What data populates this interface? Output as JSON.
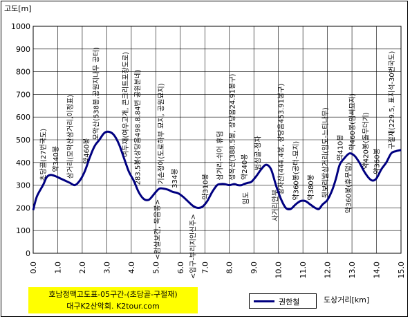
{
  "chart_data": {
    "type": "line",
    "ylabel": "고도[m]",
    "xlabel": "도상거리[km]",
    "ylim": [
      0,
      1000
    ],
    "xlim": [
      0,
      15
    ],
    "yticks": [
      "0",
      "100",
      "200",
      "300",
      "400",
      "500",
      "600",
      "700",
      "800",
      "900",
      "1000"
    ],
    "xticks": [
      "0.0",
      "1.0",
      "2.0",
      "3.0",
      "4.0",
      "5.0",
      "6.0",
      "7.0",
      "8.0",
      "9.0",
      "10.0",
      "11.0",
      "12.0",
      "13.0",
      "14.0",
      "15.0"
    ],
    "grid": true,
    "series": [
      {
        "name": "권한철",
        "color": "#000080",
        "x": [
          0.0,
          0.15,
          0.4,
          0.55,
          0.7,
          0.9,
          1.1,
          1.3,
          1.5,
          1.7,
          1.9,
          2.1,
          2.3,
          2.45,
          2.55,
          2.7,
          2.9,
          3.1,
          3.3,
          3.5,
          3.7,
          3.9,
          4.1,
          4.3,
          4.5,
          4.7,
          4.85,
          5.0,
          5.15,
          5.3,
          5.5,
          5.7,
          5.9,
          6.1,
          6.3,
          6.5,
          6.7,
          6.9,
          7.1,
          7.3,
          7.5,
          7.65,
          7.8,
          8.0,
          8.2,
          8.35,
          8.5,
          8.6,
          8.75,
          8.9,
          9.1,
          9.3,
          9.5,
          9.7,
          9.9,
          10.1,
          10.3,
          10.5,
          10.7,
          10.9,
          11.1,
          11.3,
          11.5,
          11.65,
          11.8,
          12.0,
          12.2,
          12.35,
          12.5,
          12.7,
          12.9,
          13.1,
          13.3,
          13.5,
          13.7,
          13.85,
          14.0,
          14.2,
          14.4,
          14.6,
          14.8,
          15.0
        ],
        "y": [
          190,
          250,
          300,
          335,
          345,
          340,
          330,
          320,
          310,
          300,
          320,
          360,
          420,
          460,
          480,
          500,
          530,
          535,
          520,
          480,
          420,
          360,
          320,
          270,
          240,
          235,
          250,
          270,
          285,
          285,
          280,
          270,
          265,
          250,
          230,
          210,
          200,
          205,
          230,
          270,
          300,
          305,
          305,
          300,
          305,
          300,
          300,
          305,
          310,
          315,
          340,
          370,
          390,
          370,
          300,
          240,
          200,
          195,
          215,
          230,
          230,
          215,
          200,
          195,
          215,
          235,
          280,
          330,
          390,
          420,
          440,
          430,
          400,
          360,
          330,
          320,
          330,
          370,
          400,
          440,
          450,
          455
        ]
      }
    ],
    "annotations": [
      {
        "x": 0.4,
        "text": "초당골(27번국도)"
      },
      {
        "x": 0.9,
        "text": "약340봉"
      },
      {
        "x": 1.5,
        "text": "삼거리(모악산삼거리,이정표)"
      },
      {
        "x": 2.15,
        "text": "약460봉"
      },
      {
        "x": 2.55,
        "text": "모악산(538봉,공원지나무 공터)"
      },
      {
        "x": 3.75,
        "text": "여두재(여우고개, 콘크리트포장도로)"
      },
      {
        "x": 4.25,
        "text": "283.5봉(상당음498.8.84번 공원분네)"
      },
      {
        "x": 5.2,
        "text": "기손정이(도로하부 묘지, 공원묘지)"
      },
      {
        "x": 5.75,
        "text": "334봉"
      },
      {
        "x": 7.0,
        "text": "약310봉"
      },
      {
        "x": 7.6,
        "text": "삼거리-쉬어 휴덤"
      },
      {
        "x": 8.1,
        "text": "성옥산(388.5봉, 상당음24.91봉구)"
      },
      {
        "x": 8.6,
        "text": "약240봉"
      },
      {
        "x": 9.15,
        "text": "범성골-정자"
      },
      {
        "x": 10.1,
        "text": "왕자산(444.4봉, 상당음453.91봉구)"
      },
      {
        "x": 10.7,
        "text": "약360봉(공터-묘지)"
      },
      {
        "x": 11.3,
        "text": "약380봉"
      },
      {
        "x": 11.9,
        "text": "뒷보리발삼거리(임도-느티나무)"
      },
      {
        "x": 12.5,
        "text": "약410봉"
      },
      {
        "x": 13.0,
        "text": "약460봉(임씨묘지)"
      },
      {
        "x": 13.55,
        "text": "약420봉(돌무더기)"
      },
      {
        "x": 14.0,
        "text": "약360봉"
      },
      {
        "x": 14.6,
        "text": "구절재(229.5, 표지석-30번국도)"
      }
    ],
    "bottom_annotations": [
      {
        "x": 5.05,
        "text": "<임실보건, 목음봉>"
      },
      {
        "x": 6.5,
        "text": "<입구-부리지인신주>"
      },
      {
        "x": 8.65,
        "text": "임도"
      },
      {
        "x": 9.85,
        "text": "사거리안부"
      },
      {
        "x": 12.85,
        "text": "약360봉(휴무덤)"
      }
    ]
  },
  "title_box": {
    "line1": "호남정맥고도표-05구간-(초당골-구절재)",
    "line2": "대구K2산악회. K2tour.com"
  },
  "legend": {
    "label": "권한철"
  }
}
